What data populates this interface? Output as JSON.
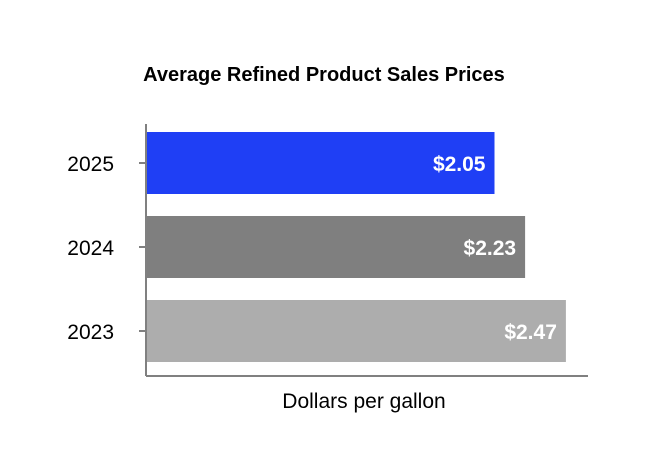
{
  "chart_data": {
    "type": "bar",
    "orientation": "horizontal",
    "title": "Average Refined Product Sales Prices",
    "xlabel": "Dollars per gallon",
    "ylabel": "",
    "categories": [
      "2025",
      "2024",
      "2023"
    ],
    "values": [
      2.05,
      2.23,
      2.47
    ],
    "value_labels": [
      "$2.05",
      "$2.23",
      "$2.47"
    ],
    "colors": [
      "#1f3ff5",
      "#7f7f7f",
      "#adadad"
    ],
    "xlim": [
      0,
      2.6
    ],
    "grid": false,
    "legend": "none"
  }
}
